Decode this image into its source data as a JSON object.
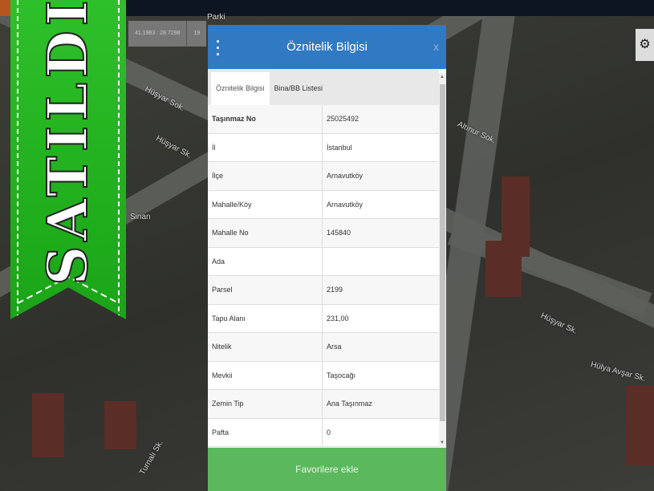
{
  "map": {
    "coords": "41.1983 : 28.7298",
    "zoom": "19",
    "labels": [
      "Parki",
      "Hüşyar Sok.",
      "Hüşyar Sk.",
      "Sinan",
      "Altınur Sok.",
      "Hüşyar Sk.",
      "Hülya Avşar Sk.",
      "Turnalı Sk."
    ]
  },
  "banner": {
    "text": "SATILDI",
    "color": "#22b31e"
  },
  "panel": {
    "title": "Öznitelik Bilgisi",
    "close": "x",
    "tabs": [
      {
        "label": "Öznitelik Bilgisi",
        "active": true
      },
      {
        "label": "Bina/BB Listesi",
        "active": false
      }
    ],
    "rows": [
      {
        "key": "Taşınmaz No",
        "value": "25025492"
      },
      {
        "key": "İl",
        "value": "İstanbul"
      },
      {
        "key": "İlçe",
        "value": "Arnavutköy"
      },
      {
        "key": "Mahalle/Köy",
        "value": "Arnavutköy"
      },
      {
        "key": "Mahalle No",
        "value": "145840"
      },
      {
        "key": "Ada",
        "value": ""
      },
      {
        "key": "Parsel",
        "value": "2199"
      },
      {
        "key": "Tapu Alanı",
        "value": "231,00"
      },
      {
        "key": "Nitelik",
        "value": "Arsa"
      },
      {
        "key": "Mevkii",
        "value": "Taşocağı"
      },
      {
        "key": "Zemin Tip",
        "value": "Ana Taşınmaz"
      },
      {
        "key": "Pafta",
        "value": "0"
      }
    ],
    "favorite_label": "Favorilere ekle",
    "header_color": "#3079c3",
    "button_color": "#5cb85c"
  }
}
